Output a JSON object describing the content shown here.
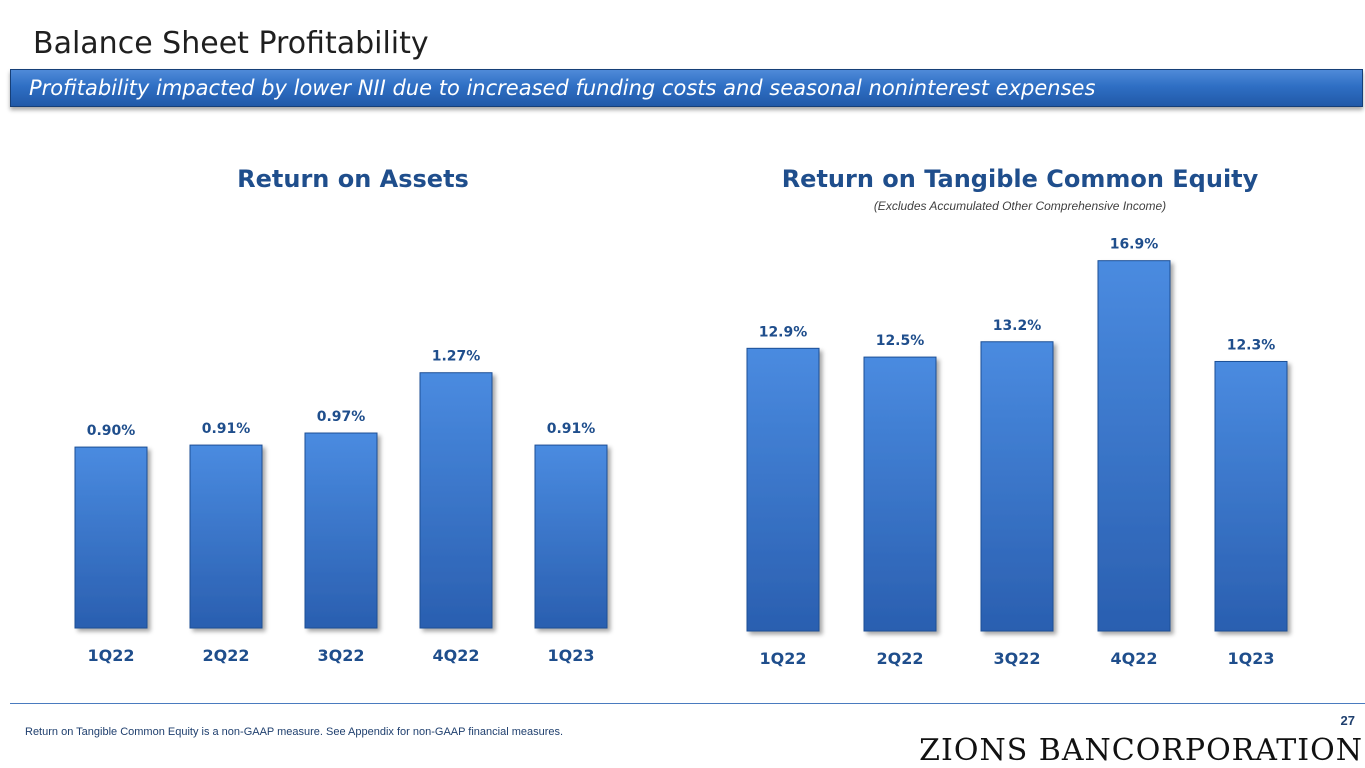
{
  "page": {
    "title": "Balance Sheet Profitability",
    "banner": "Profitability impacted by lower NII due to increased funding costs and seasonal noninterest expenses",
    "footnote": "Return on Tangible Common Equity is a non-GAAP measure. See Appendix for non-GAAP financial measures.",
    "page_number": "27",
    "logo_text": "ZIONS BANCORPORATION"
  },
  "colors": {
    "bar_top": "#4a8be0",
    "bar_bottom": "#2a5fb0",
    "accent": "#1f4e8c"
  },
  "chart_data": [
    {
      "type": "bar",
      "title": "Return on Assets",
      "subtitle": "",
      "categories": [
        "1Q22",
        "2Q22",
        "3Q22",
        "4Q22",
        "1Q23"
      ],
      "values": [
        0.9,
        0.91,
        0.97,
        1.27,
        0.91
      ],
      "value_labels": [
        "0.90%",
        "0.91%",
        "0.97%",
        "1.27%",
        "0.91%"
      ],
      "unit": "%",
      "ylim": [
        0,
        1.98
      ],
      "grid": false,
      "axes_visible": false
    },
    {
      "type": "bar",
      "title": "Return on Tangible Common Equity",
      "subtitle": "(Excludes Accumulated Other Comprehensive Income)",
      "categories": [
        "1Q22",
        "2Q22",
        "3Q22",
        "4Q22",
        "1Q23"
      ],
      "values": [
        12.9,
        12.5,
        13.2,
        16.9,
        12.3
      ],
      "value_labels": [
        "12.9%",
        "12.5%",
        "13.2%",
        "16.9%",
        "12.3%"
      ],
      "unit": "%",
      "ylim": [
        0,
        18.3
      ],
      "grid": false,
      "axes_visible": false
    }
  ]
}
